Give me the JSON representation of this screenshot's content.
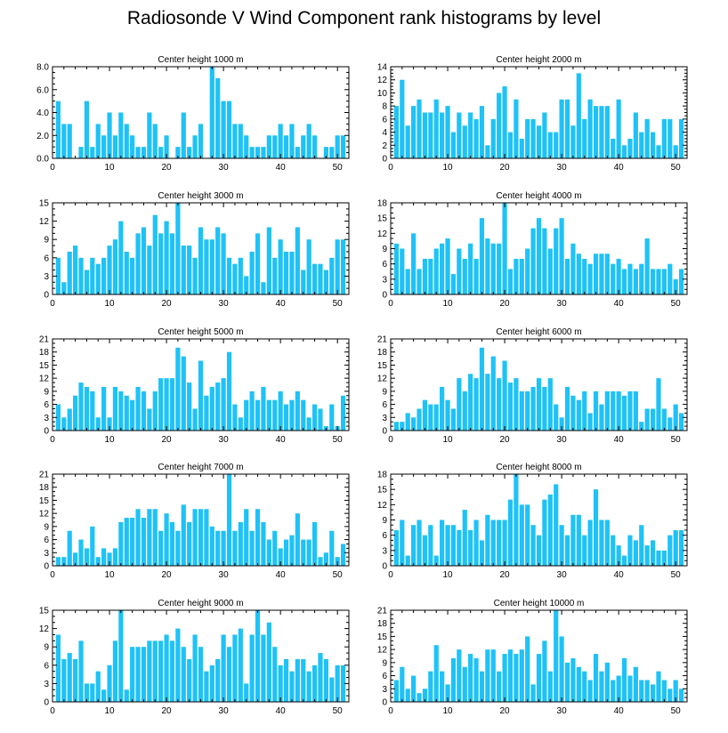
{
  "title": "Radiosonde V Wind Component rank histograms by level",
  "colors": {
    "bar": "#1ec2f7",
    "axis": "#000000",
    "background": "#ffffff"
  },
  "chart_data": [
    {
      "type": "bar",
      "title": "Center height 1000 m",
      "xlim": [
        0,
        52
      ],
      "ylim": [
        0,
        8
      ],
      "xticks": [
        0,
        10,
        20,
        30,
        40,
        50
      ],
      "yticks": [
        0,
        2,
        4,
        6,
        8
      ],
      "ytick_labels": [
        "0.0",
        "2.0",
        "4.0",
        "6.0",
        "8.0"
      ],
      "x": [
        1,
        2,
        3,
        4,
        5,
        6,
        7,
        8,
        9,
        10,
        11,
        12,
        13,
        14,
        15,
        16,
        17,
        18,
        19,
        20,
        21,
        22,
        23,
        24,
        25,
        26,
        27,
        28,
        29,
        30,
        31,
        32,
        33,
        34,
        35,
        36,
        37,
        38,
        39,
        40,
        41,
        42,
        43,
        44,
        45,
        46,
        47,
        48,
        49,
        50,
        51
      ],
      "values": [
        5,
        3,
        3,
        0,
        1,
        5,
        1,
        3,
        2,
        4,
        2,
        4,
        3,
        2,
        1,
        1,
        4,
        3,
        1,
        2,
        0,
        1,
        4,
        1,
        2,
        3,
        0,
        8,
        7,
        5,
        5,
        3,
        3,
        2,
        1,
        1,
        1,
        2,
        2,
        3,
        2,
        3,
        1,
        2,
        3,
        2,
        0,
        1,
        1,
        2,
        2
      ]
    },
    {
      "type": "bar",
      "title": "Center height 2000 m",
      "xlim": [
        0,
        52
      ],
      "ylim": [
        0,
        14
      ],
      "xticks": [
        0,
        10,
        20,
        30,
        40,
        50
      ],
      "yticks": [
        0,
        2,
        4,
        6,
        8,
        10,
        12,
        14
      ],
      "ytick_labels": [
        "0",
        "2",
        "4",
        "6",
        "8",
        "10",
        "12",
        "14"
      ],
      "x": [
        1,
        2,
        3,
        4,
        5,
        6,
        7,
        8,
        9,
        10,
        11,
        12,
        13,
        14,
        15,
        16,
        17,
        18,
        19,
        20,
        21,
        22,
        23,
        24,
        25,
        26,
        27,
        28,
        29,
        30,
        31,
        32,
        33,
        34,
        35,
        36,
        37,
        38,
        39,
        40,
        41,
        42,
        43,
        44,
        45,
        46,
        47,
        48,
        49,
        50,
        51
      ],
      "values": [
        8,
        12,
        5,
        8,
        9,
        7,
        7,
        9,
        7,
        8,
        4,
        7,
        5,
        7,
        6,
        8,
        2,
        6,
        10,
        11,
        4,
        9,
        3,
        6,
        6,
        5,
        7,
        4,
        4,
        9,
        9,
        5,
        13,
        6,
        9,
        8,
        8,
        8,
        3,
        9,
        2,
        3,
        7,
        4,
        6,
        4,
        2,
        6,
        6,
        2,
        6
      ]
    },
    {
      "type": "bar",
      "title": "Center height 3000 m",
      "xlim": [
        0,
        52
      ],
      "ylim": [
        0,
        15
      ],
      "xticks": [
        0,
        10,
        20,
        30,
        40,
        50
      ],
      "yticks": [
        0,
        3,
        6,
        9,
        12,
        15
      ],
      "ytick_labels": [
        "0",
        "3",
        "6",
        "9",
        "12",
        "15"
      ],
      "x": [
        1,
        2,
        3,
        4,
        5,
        6,
        7,
        8,
        9,
        10,
        11,
        12,
        13,
        14,
        15,
        16,
        17,
        18,
        19,
        20,
        21,
        22,
        23,
        24,
        25,
        26,
        27,
        28,
        29,
        30,
        31,
        32,
        33,
        34,
        35,
        36,
        37,
        38,
        39,
        40,
        41,
        42,
        43,
        44,
        45,
        46,
        47,
        48,
        49,
        50,
        51
      ],
      "values": [
        6,
        2,
        7,
        8,
        6,
        4,
        6,
        5,
        6,
        8,
        9,
        12,
        7,
        6,
        10,
        11,
        8,
        13,
        10,
        12,
        10,
        15,
        8,
        8,
        6,
        11,
        9,
        9,
        11,
        10,
        6,
        5,
        6,
        3,
        7,
        10,
        2,
        11,
        6,
        9,
        7,
        7,
        11,
        4,
        9,
        5,
        5,
        4,
        6,
        9,
        9
      ]
    },
    {
      "type": "bar",
      "title": "Center height 4000 m",
      "xlim": [
        0,
        52
      ],
      "ylim": [
        0,
        18
      ],
      "xticks": [
        0,
        10,
        20,
        30,
        40,
        50
      ],
      "yticks": [
        0,
        3,
        6,
        9,
        12,
        15,
        18
      ],
      "ytick_labels": [
        "0",
        "3",
        "6",
        "9",
        "12",
        "15",
        "18"
      ],
      "x": [
        1,
        2,
        3,
        4,
        5,
        6,
        7,
        8,
        9,
        10,
        11,
        12,
        13,
        14,
        15,
        16,
        17,
        18,
        19,
        20,
        21,
        22,
        23,
        24,
        25,
        26,
        27,
        28,
        29,
        30,
        31,
        32,
        33,
        34,
        35,
        36,
        37,
        38,
        39,
        40,
        41,
        42,
        43,
        44,
        45,
        46,
        47,
        48,
        49,
        50,
        51
      ],
      "values": [
        10,
        9,
        5,
        12,
        5,
        7,
        7,
        9,
        10,
        11,
        4,
        9,
        7,
        10,
        7,
        15,
        11,
        10,
        10,
        18,
        5,
        7,
        7,
        9,
        13,
        15,
        13,
        9,
        13,
        15,
        7,
        10,
        8,
        7,
        6,
        8,
        8,
        8,
        6,
        7,
        5,
        6,
        5,
        6,
        11,
        5,
        5,
        5,
        6,
        3,
        5
      ]
    },
    {
      "type": "bar",
      "title": "Center height 5000 m",
      "xlim": [
        0,
        52
      ],
      "ylim": [
        0,
        21
      ],
      "xticks": [
        0,
        10,
        20,
        30,
        40,
        50
      ],
      "yticks": [
        0,
        3,
        6,
        9,
        12,
        15,
        18,
        21
      ],
      "ytick_labels": [
        "0",
        "3",
        "6",
        "9",
        "12",
        "15",
        "18",
        "21"
      ],
      "x": [
        1,
        2,
        3,
        4,
        5,
        6,
        7,
        8,
        9,
        10,
        11,
        12,
        13,
        14,
        15,
        16,
        17,
        18,
        19,
        20,
        21,
        22,
        23,
        24,
        25,
        26,
        27,
        28,
        29,
        30,
        31,
        32,
        33,
        34,
        35,
        36,
        37,
        38,
        39,
        40,
        41,
        42,
        43,
        44,
        45,
        46,
        47,
        48,
        49,
        50,
        51
      ],
      "values": [
        6,
        3,
        5,
        8,
        11,
        10,
        9,
        3,
        10,
        3,
        10,
        9,
        8,
        7,
        10,
        9,
        5,
        9,
        12,
        12,
        12,
        19,
        17,
        11,
        5,
        16,
        8,
        10,
        11,
        12,
        18,
        6,
        3,
        7,
        9,
        7,
        10,
        7,
        7,
        9,
        6,
        7,
        9,
        7,
        3,
        6,
        5,
        1,
        6,
        1,
        8
      ]
    },
    {
      "type": "bar",
      "title": "Center height 6000 m",
      "xlim": [
        0,
        52
      ],
      "ylim": [
        0,
        21
      ],
      "xticks": [
        0,
        10,
        20,
        30,
        40,
        50
      ],
      "yticks": [
        0,
        3,
        6,
        9,
        12,
        15,
        18,
        21
      ],
      "ytick_labels": [
        "0",
        "3",
        "6",
        "9",
        "12",
        "15",
        "18",
        "21"
      ],
      "x": [
        1,
        2,
        3,
        4,
        5,
        6,
        7,
        8,
        9,
        10,
        11,
        12,
        13,
        14,
        15,
        16,
        17,
        18,
        19,
        20,
        21,
        22,
        23,
        24,
        25,
        26,
        27,
        28,
        29,
        30,
        31,
        32,
        33,
        34,
        35,
        36,
        37,
        38,
        39,
        40,
        41,
        42,
        43,
        44,
        45,
        46,
        47,
        48,
        49,
        50,
        51
      ],
      "values": [
        2,
        2,
        4,
        3,
        5,
        7,
        6,
        6,
        10,
        7,
        5,
        12,
        9,
        13,
        12,
        19,
        13,
        17,
        12,
        16,
        11,
        12,
        9,
        9,
        10,
        12,
        10,
        12,
        6,
        3,
        10,
        8,
        7,
        9,
        4,
        9,
        6,
        9,
        9,
        9,
        8,
        9,
        9,
        2,
        5,
        5,
        12,
        5,
        3,
        6,
        4
      ]
    },
    {
      "type": "bar",
      "title": "Center height 7000 m",
      "xlim": [
        0,
        52
      ],
      "ylim": [
        0,
        21
      ],
      "xticks": [
        0,
        10,
        20,
        30,
        40,
        50
      ],
      "yticks": [
        0,
        3,
        6,
        9,
        12,
        15,
        18,
        21
      ],
      "ytick_labels": [
        "0",
        "3",
        "6",
        "9",
        "12",
        "15",
        "18",
        "21"
      ],
      "x": [
        1,
        2,
        3,
        4,
        5,
        6,
        7,
        8,
        9,
        10,
        11,
        12,
        13,
        14,
        15,
        16,
        17,
        18,
        19,
        20,
        21,
        22,
        23,
        24,
        25,
        26,
        27,
        28,
        29,
        30,
        31,
        32,
        33,
        34,
        35,
        36,
        37,
        38,
        39,
        40,
        41,
        42,
        43,
        44,
        45,
        46,
        47,
        48,
        49,
        50,
        51
      ],
      "values": [
        2,
        2,
        8,
        3,
        6,
        4,
        9,
        2,
        4,
        3,
        4,
        10,
        11,
        11,
        13,
        11,
        13,
        13,
        8,
        12,
        10,
        8,
        14,
        10,
        13,
        13,
        13,
        9,
        8,
        8,
        21,
        8,
        10,
        13,
        8,
        13,
        10,
        6,
        8,
        4,
        6,
        7,
        12,
        6,
        6,
        10,
        2,
        3,
        8,
        2,
        5
      ]
    },
    {
      "type": "bar",
      "title": "Center height 8000 m",
      "xlim": [
        0,
        52
      ],
      "ylim": [
        0,
        18
      ],
      "xticks": [
        0,
        10,
        20,
        30,
        40,
        50
      ],
      "yticks": [
        0,
        3,
        6,
        9,
        12,
        15,
        18
      ],
      "ytick_labels": [
        "0",
        "3",
        "6",
        "9",
        "12",
        "15",
        "18"
      ],
      "x": [
        1,
        2,
        3,
        4,
        5,
        6,
        7,
        8,
        9,
        10,
        11,
        12,
        13,
        14,
        15,
        16,
        17,
        18,
        19,
        20,
        21,
        22,
        23,
        24,
        25,
        26,
        27,
        28,
        29,
        30,
        31,
        32,
        33,
        34,
        35,
        36,
        37,
        38,
        39,
        40,
        41,
        42,
        43,
        44,
        45,
        46,
        47,
        48,
        49,
        50,
        51
      ],
      "values": [
        7,
        9,
        2,
        8,
        9,
        6,
        8,
        2,
        9,
        8,
        8,
        7,
        11,
        7,
        9,
        5,
        10,
        9,
        9,
        9,
        13,
        18,
        12,
        12,
        8,
        6,
        13,
        14,
        16,
        8,
        6,
        10,
        10,
        6,
        9,
        15,
        9,
        9,
        6,
        4,
        2,
        6,
        5,
        8,
        4,
        5,
        3,
        3,
        6,
        7,
        7
      ]
    },
    {
      "type": "bar",
      "title": "Center height 9000 m",
      "xlim": [
        0,
        52
      ],
      "ylim": [
        0,
        15
      ],
      "xticks": [
        0,
        10,
        20,
        30,
        40,
        50
      ],
      "yticks": [
        0,
        3,
        6,
        9,
        12,
        15
      ],
      "ytick_labels": [
        "0",
        "3",
        "6",
        "9",
        "12",
        "15"
      ],
      "x": [
        1,
        2,
        3,
        4,
        5,
        6,
        7,
        8,
        9,
        10,
        11,
        12,
        13,
        14,
        15,
        16,
        17,
        18,
        19,
        20,
        21,
        22,
        23,
        24,
        25,
        26,
        27,
        28,
        29,
        30,
        31,
        32,
        33,
        34,
        35,
        36,
        37,
        38,
        39,
        40,
        41,
        42,
        43,
        44,
        45,
        46,
        47,
        48,
        49,
        50,
        51
      ],
      "values": [
        11,
        7,
        8,
        7,
        10,
        3,
        3,
        5,
        2,
        6,
        10,
        15,
        2,
        9,
        9,
        9,
        10,
        10,
        10,
        11,
        10,
        12,
        9,
        7,
        11,
        9,
        5,
        6,
        7,
        11,
        9,
        11,
        12,
        3,
        11,
        15,
        11,
        13,
        9,
        6,
        7,
        5,
        7,
        7,
        5,
        6,
        8,
        7,
        4,
        6,
        6
      ]
    },
    {
      "type": "bar",
      "title": "Center height 10000 m",
      "xlim": [
        0,
        52
      ],
      "ylim": [
        0,
        21
      ],
      "xticks": [
        0,
        10,
        20,
        30,
        40,
        50
      ],
      "yticks": [
        0,
        3,
        6,
        9,
        12,
        15,
        18,
        21
      ],
      "ytick_labels": [
        "0",
        "3",
        "6",
        "9",
        "12",
        "15",
        "18",
        "21"
      ],
      "x": [
        1,
        2,
        3,
        4,
        5,
        6,
        7,
        8,
        9,
        10,
        11,
        12,
        13,
        14,
        15,
        16,
        17,
        18,
        19,
        20,
        21,
        22,
        23,
        24,
        25,
        26,
        27,
        28,
        29,
        30,
        31,
        32,
        33,
        34,
        35,
        36,
        37,
        38,
        39,
        40,
        41,
        42,
        43,
        44,
        45,
        46,
        47,
        48,
        49,
        50,
        51
      ],
      "values": [
        5,
        8,
        3,
        6,
        2,
        3,
        7,
        13,
        7,
        4,
        10,
        12,
        8,
        11,
        10,
        7,
        12,
        12,
        7,
        11,
        12,
        11,
        12,
        15,
        4,
        11,
        14,
        7,
        21,
        15,
        9,
        10,
        8,
        7,
        5,
        11,
        7,
        9,
        5,
        6,
        10,
        6,
        8,
        5,
        5,
        4,
        7,
        5,
        3,
        5,
        3
      ]
    }
  ]
}
